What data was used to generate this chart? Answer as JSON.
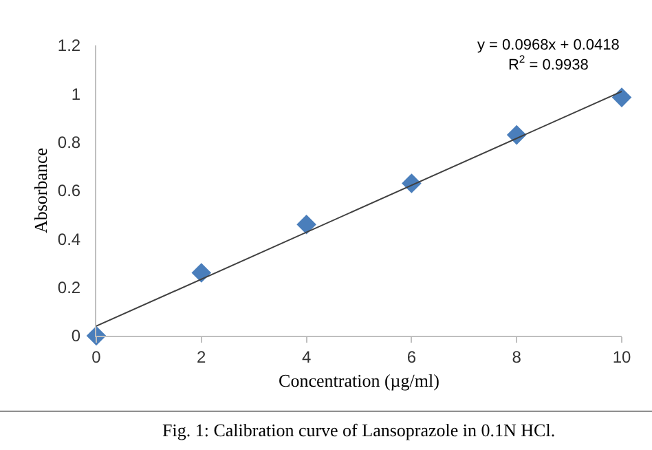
{
  "chart_data": {
    "type": "scatter",
    "xlabel": "Concentration (µg/ml)",
    "ylabel": "Absorbance",
    "x": [
      0,
      2,
      4,
      6,
      8,
      10
    ],
    "series": [
      {
        "color": "#4a7ebb",
        "values": [
          0,
          0.26,
          0.46,
          0.63,
          0.83,
          0.985
        ],
        "marker": "diamond"
      },
      {
        "type": "line",
        "color": "#404040",
        "x": [
          0,
          10
        ],
        "values": [
          0.04,
          1.01
        ],
        "marker": "none",
        "line_style": "solid"
      }
    ],
    "xlim": [
      0,
      10
    ],
    "xticks": [
      0,
      2,
      4,
      6,
      8,
      10
    ],
    "ylim": [
      0,
      1.2
    ],
    "yticks": [
      0,
      0.2,
      0.4,
      0.6,
      0.8,
      1,
      1.2
    ],
    "grid": false,
    "annotations": [
      "y = 0.0968x + 0.0418\nR$^{2}$ = 0.9938",
      "Fig. 1: Calibration curve of Lansoprazole in 0.1N HCl."
    ]
  }
}
